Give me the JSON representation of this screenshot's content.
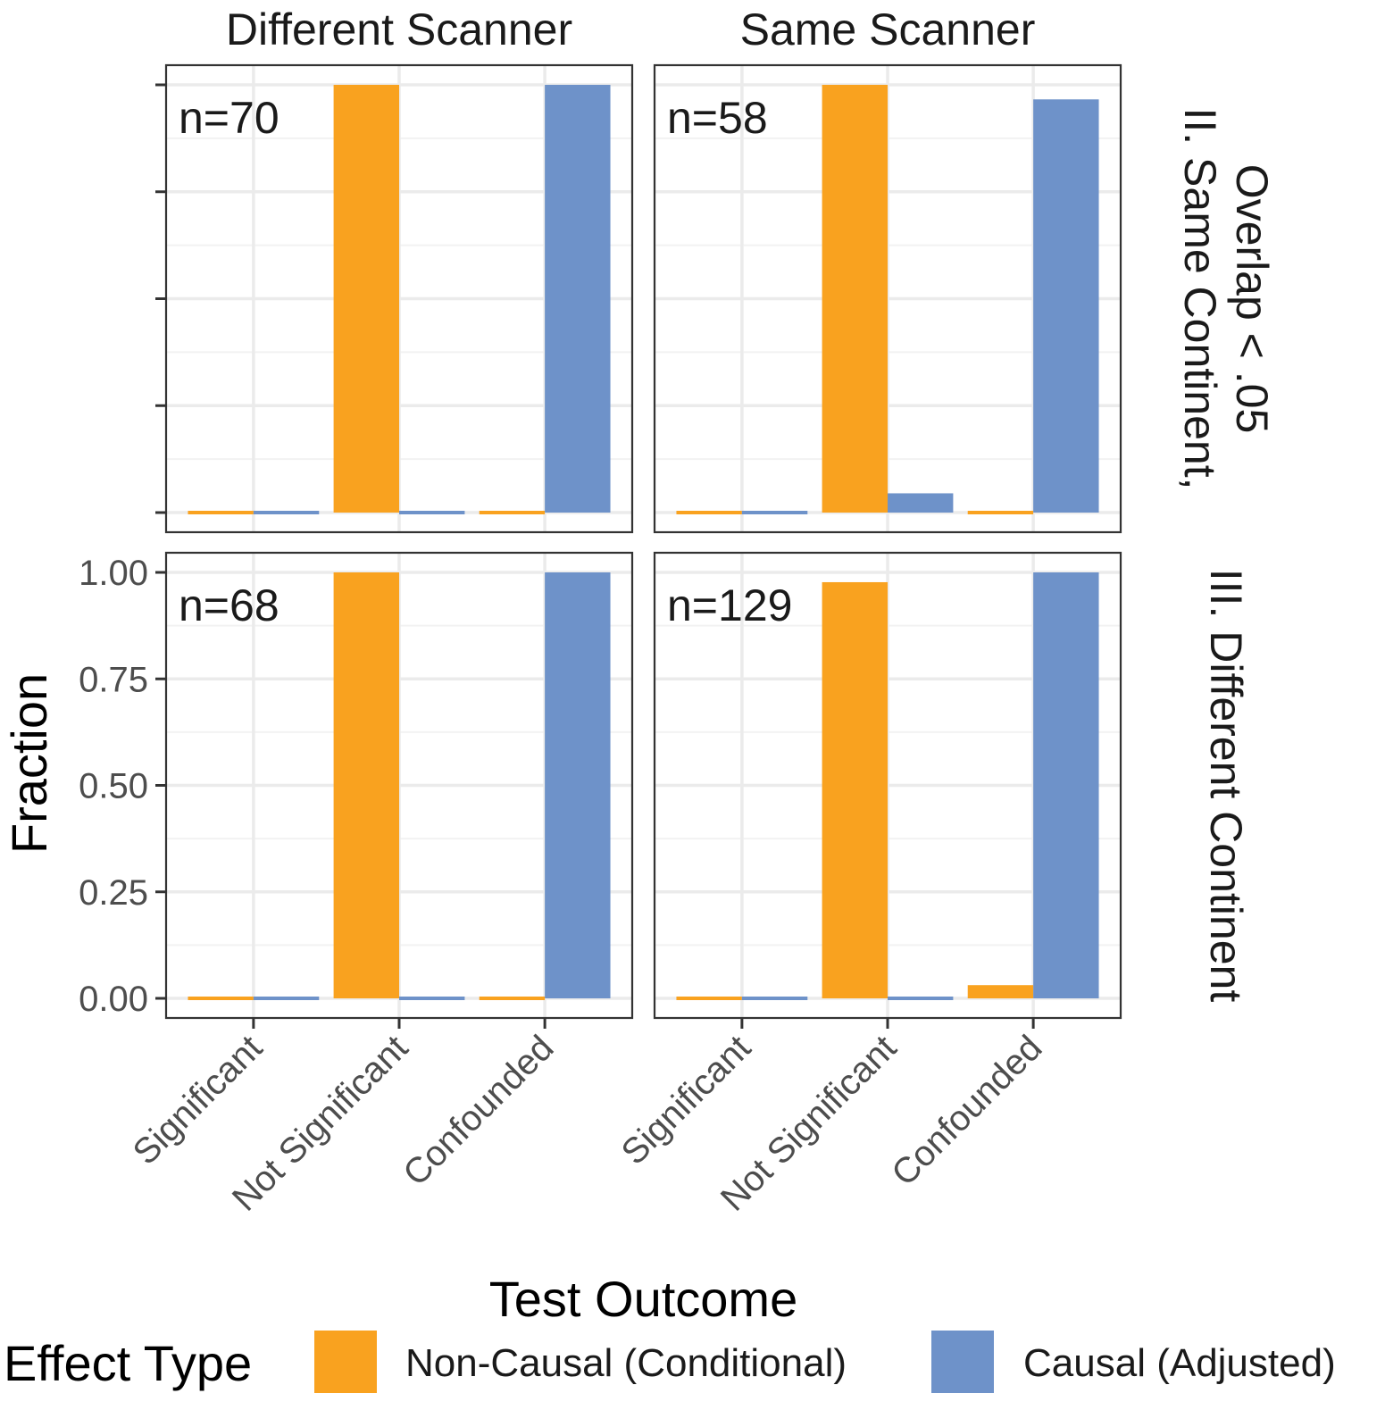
{
  "chart_data": {
    "type": "bar",
    "xlabel": "Test Outcome",
    "ylabel": "Fraction",
    "ylim": [
      0,
      1
    ],
    "yticks": [
      "0.00",
      "0.25",
      "0.50",
      "0.75",
      "1.00"
    ],
    "categories": [
      "Significant",
      "Not Significant",
      "Confounded"
    ],
    "column_facets": [
      "Different Scanner",
      "Same Scanner"
    ],
    "row_facets": [
      "II. Same Continent,\nOverlap < .05",
      "III. Different Continent"
    ],
    "row_facet_lines": [
      [
        "II. Same Continent,",
        "Overlap < .05"
      ],
      [
        "III. Different Continent"
      ]
    ],
    "legend": {
      "title": "Effect Type",
      "position": "bottom",
      "entries": [
        {
          "name": "Non-Causal (Conditional)",
          "color": "#F9A21F"
        },
        {
          "name": "Causal (Adjusted)",
          "color": "#6E92C9"
        }
      ]
    },
    "grid": true,
    "panels": [
      {
        "row": 0,
        "col": 0,
        "annotation": "n=70",
        "series": [
          {
            "name": "Non-Causal (Conditional)",
            "values": [
              0.0,
              1.0,
              0.0
            ]
          },
          {
            "name": "Causal (Adjusted)",
            "values": [
              0.0,
              0.0,
              1.0
            ]
          }
        ]
      },
      {
        "row": 0,
        "col": 1,
        "annotation": "n=58",
        "series": [
          {
            "name": "Non-Causal (Conditional)",
            "values": [
              0.0,
              1.0,
              0.0
            ]
          },
          {
            "name": "Causal (Adjusted)",
            "values": [
              0.0,
              0.045,
              0.966
            ]
          }
        ]
      },
      {
        "row": 1,
        "col": 0,
        "annotation": "n=68",
        "series": [
          {
            "name": "Non-Causal (Conditional)",
            "values": [
              0.0,
              1.0,
              0.0
            ]
          },
          {
            "name": "Causal (Adjusted)",
            "values": [
              0.0,
              0.0,
              1.0
            ]
          }
        ]
      },
      {
        "row": 1,
        "col": 1,
        "annotation": "n=129",
        "series": [
          {
            "name": "Non-Causal (Conditional)",
            "values": [
              0.0,
              0.977,
              0.031
            ]
          },
          {
            "name": "Causal (Adjusted)",
            "values": [
              0.0,
              0.0,
              1.0
            ]
          }
        ]
      }
    ]
  }
}
